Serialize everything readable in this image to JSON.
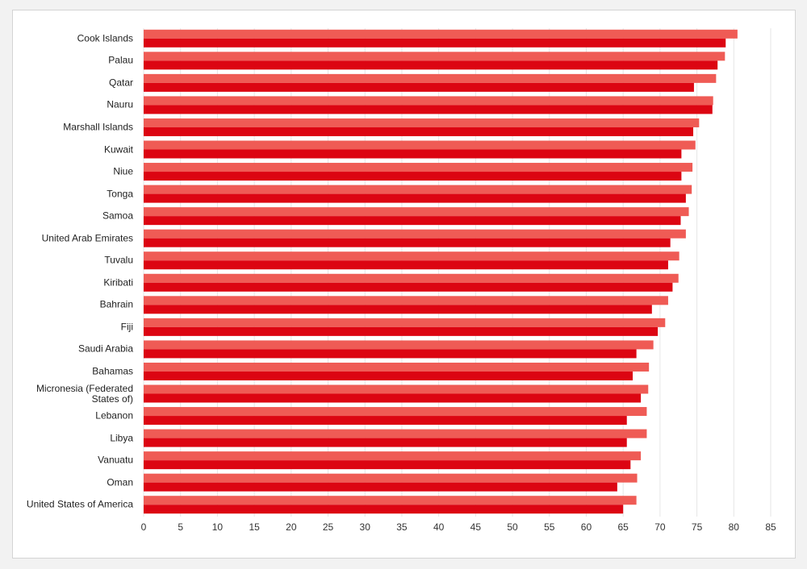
{
  "chart_data": {
    "type": "bar",
    "orientation": "horizontal",
    "categories": [
      "Cook Islands",
      "Palau",
      "Qatar",
      "Nauru",
      "Marshall Islands",
      "Kuwait",
      "Niue",
      "Tonga",
      "Samoa",
      "United Arab Emirates",
      "Tuvalu",
      "Kiribati",
      "Bahrain",
      "Fiji",
      "Saudi Arabia",
      "Bahamas",
      "Micronesia (Federated States of)",
      "Lebanon",
      "Libya",
      "Vanuatu",
      "Oman",
      "United States of America"
    ],
    "series": [
      {
        "color": "#ef5b55",
        "values": [
          80.5,
          78.8,
          77.6,
          77.2,
          75.3,
          74.8,
          74.4,
          74.3,
          73.9,
          73.5,
          72.6,
          72.5,
          71.1,
          70.7,
          69.1,
          68.5,
          68.4,
          68.2,
          68.2,
          67.4,
          66.9,
          66.8
        ]
      },
      {
        "color": "#dc0512",
        "values": [
          78.9,
          77.8,
          74.6,
          77.1,
          74.5,
          72.9,
          72.9,
          73.5,
          72.8,
          71.4,
          71.1,
          71.7,
          68.9,
          69.7,
          66.8,
          66.3,
          67.4,
          65.5,
          65.5,
          66.0,
          64.2,
          65.0
        ]
      }
    ],
    "xlim": [
      0,
      85
    ],
    "xticks": [
      0,
      5,
      10,
      15,
      20,
      25,
      30,
      35,
      40,
      45,
      50,
      55,
      60,
      65,
      70,
      75,
      80,
      85
    ],
    "grid": true
  }
}
